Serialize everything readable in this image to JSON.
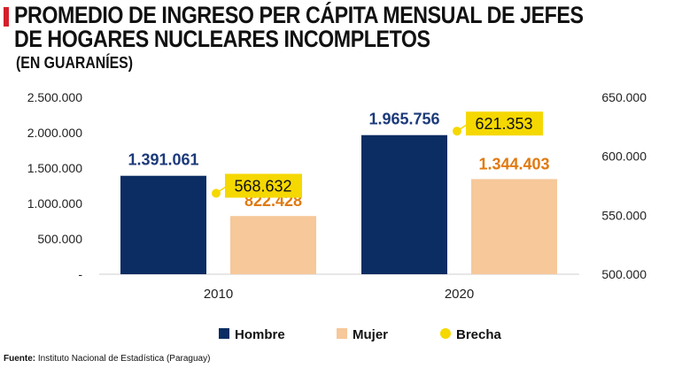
{
  "title": "PROMEDIO DE INGRESO PER CÁPITA MENSUAL DE JEFES DE HOGARES NUCLEARES INCOMPLETOS",
  "subtitle": "(EN GUARANÍES)",
  "source_label": "Fuente:",
  "source_text": "Instituto Nacional de Estadística (Paraguay)",
  "colors": {
    "hombre": "#0b2d63",
    "mujer": "#f6c89a",
    "brecha": "#f5d800",
    "hombre_label": "#1c3a7a",
    "mujer_label": "#e07a12",
    "axis_text": "#222222"
  },
  "chart_data": {
    "type": "bar",
    "categories": [
      "2010",
      "2020"
    ],
    "series": [
      {
        "name": "Hombre",
        "axis": "left",
        "values": [
          1391061,
          1965756
        ],
        "labels": [
          "1.391.061",
          "1.965.756"
        ]
      },
      {
        "name": "Mujer",
        "axis": "left",
        "values": [
          822428,
          1344403
        ],
        "labels": [
          "822.428",
          "1.344.403"
        ]
      },
      {
        "name": "Brecha",
        "axis": "right",
        "type": "point",
        "values": [
          568632,
          621353
        ],
        "labels": [
          "568.632",
          "621.353"
        ]
      }
    ],
    "ylim_left": [
      0,
      2500000
    ],
    "yticks_left": [
      "-",
      "500.000",
      "1.000.000",
      "1.500.000",
      "2.000.000",
      "2.500.000"
    ],
    "ylim_right": [
      500000,
      650000
    ],
    "yticks_right": [
      "500.000",
      "550.000",
      "600.000",
      "650.000"
    ],
    "legend": [
      "Hombre",
      "Mujer",
      "Brecha"
    ],
    "legend_position": "bottom",
    "grid": false
  }
}
